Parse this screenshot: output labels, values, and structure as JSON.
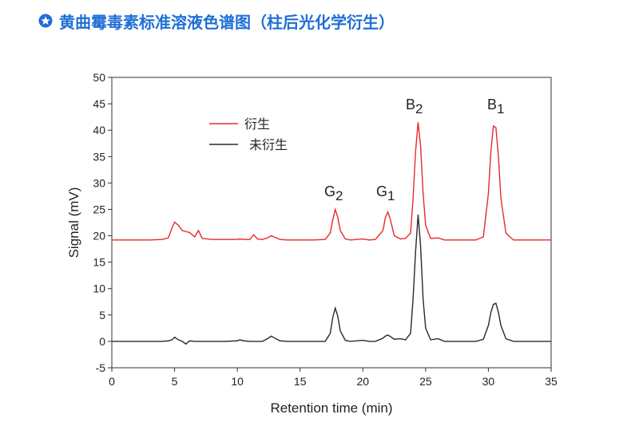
{
  "header": {
    "title": "黄曲霉毒素标准溶液色谱图（柱后光化学衍生）"
  },
  "chart_data": {
    "type": "line",
    "xlabel": "Retention time (min)",
    "ylabel": "Signal (mV)",
    "xlim": [
      0,
      35
    ],
    "xticks": [
      0,
      5,
      10,
      15,
      20,
      25,
      30,
      35
    ],
    "ylim": [
      -5,
      50
    ],
    "yticks": [
      -5,
      0,
      5,
      10,
      15,
      20,
      25,
      30,
      35,
      40,
      45,
      50
    ],
    "x": [
      0,
      1,
      2,
      3,
      4,
      4.5,
      4.8,
      5.0,
      5.3,
      5.6,
      5.9,
      6.2,
      6.6,
      6.9,
      7.2,
      8,
      9,
      10,
      10.2,
      10.5,
      11,
      11.3,
      11.6,
      12,
      12.4,
      12.7,
      13.0,
      13.4,
      14,
      15,
      16,
      17,
      17.4,
      17.6,
      17.8,
      18.0,
      18.2,
      18.6,
      19,
      20,
      20.5,
      21,
      21.6,
      21.8,
      22.0,
      22.2,
      22.5,
      23,
      23.4,
      23.8,
      24.0,
      24.2,
      24.4,
      24.6,
      24.8,
      25.0,
      25.4,
      26,
      26.5,
      27,
      28,
      29,
      29.6,
      30.0,
      30.2,
      30.4,
      30.6,
      30.8,
      31.0,
      31.4,
      32,
      33,
      34,
      35
    ],
    "series": [
      {
        "name": "衍生",
        "color": "#e8292b",
        "values": [
          19.2,
          19.2,
          19.2,
          19.2,
          19.3,
          19.6,
          21.5,
          22.6,
          22.0,
          21.0,
          20.8,
          20.6,
          19.8,
          21.0,
          19.5,
          19.3,
          19.3,
          19.3,
          19.4,
          19.3,
          19.3,
          20.2,
          19.4,
          19.3,
          19.6,
          20.0,
          19.7,
          19.3,
          19.2,
          19.2,
          19.2,
          19.3,
          20.5,
          23.0,
          25.0,
          23.5,
          21.0,
          19.4,
          19.2,
          19.4,
          19.2,
          19.3,
          21.0,
          23.5,
          24.5,
          23.0,
          20.0,
          19.4,
          19.5,
          20.5,
          27,
          36,
          41.5,
          37,
          28,
          22,
          19.5,
          19.6,
          19.2,
          19.2,
          19.2,
          19.2,
          19.8,
          28,
          36,
          40.8,
          40.5,
          35,
          27,
          20.5,
          19.2,
          19.2,
          19.2,
          19.2
        ]
      },
      {
        "name": "未衍生",
        "color": "#2a2a2a",
        "values": [
          0,
          0,
          0,
          0,
          0,
          0.1,
          0.3,
          0.8,
          0.3,
          0,
          -0.5,
          0.1,
          0,
          0,
          0,
          0,
          0,
          0.1,
          0.3,
          0.1,
          0,
          0,
          0,
          0,
          0.5,
          1.0,
          0.6,
          0.1,
          0,
          0,
          0,
          0,
          1.5,
          4.5,
          6.3,
          4.8,
          2.0,
          0.2,
          0,
          0.2,
          0,
          0,
          0.6,
          1.0,
          1.2,
          0.9,
          0.4,
          0.5,
          0.3,
          1.5,
          8,
          17,
          24,
          18,
          8,
          2.5,
          0.3,
          0.5,
          0,
          0,
          0,
          0,
          0.4,
          3,
          5.5,
          7,
          7.2,
          5.5,
          3,
          0.5,
          0,
          0,
          0,
          0
        ]
      }
    ],
    "annotations": [
      {
        "text": "G",
        "sub": "2"
      },
      {
        "text": "G",
        "sub": "1"
      },
      {
        "text": "B",
        "sub": "2"
      },
      {
        "text": "B",
        "sub": "1"
      }
    ]
  }
}
